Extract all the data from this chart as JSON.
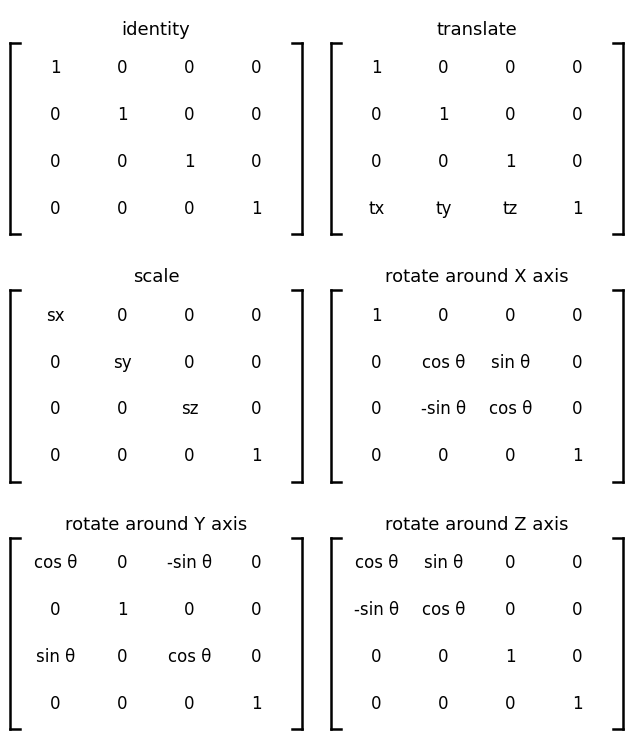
{
  "title_fontsize": 13,
  "cell_fontsize": 12,
  "background_color": "#ffffff",
  "text_color": "#000000",
  "bracket_color": "#000000",
  "fig_width": 6.33,
  "fig_height": 7.35,
  "matrices": [
    {
      "title": "identity",
      "col": 0,
      "row": 0,
      "cells": [
        [
          "1",
          "0",
          "0",
          "0"
        ],
        [
          "0",
          "1",
          "0",
          "0"
        ],
        [
          "0",
          "0",
          "1",
          "0"
        ],
        [
          "0",
          "0",
          "0",
          "1"
        ]
      ]
    },
    {
      "title": "translate",
      "col": 1,
      "row": 0,
      "cells": [
        [
          "1",
          "0",
          "0",
          "0"
        ],
        [
          "0",
          "1",
          "0",
          "0"
        ],
        [
          "0",
          "0",
          "1",
          "0"
        ],
        [
          "tx",
          "ty",
          "tz",
          "1"
        ]
      ]
    },
    {
      "title": "scale",
      "col": 0,
      "row": 1,
      "cells": [
        [
          "sx",
          "0",
          "0",
          "0"
        ],
        [
          "0",
          "sy",
          "0",
          "0"
        ],
        [
          "0",
          "0",
          "sz",
          "0"
        ],
        [
          "0",
          "0",
          "0",
          "1"
        ]
      ]
    },
    {
      "title": "rotate around X axis",
      "col": 1,
      "row": 1,
      "cells": [
        [
          "1",
          "0",
          "0",
          "0"
        ],
        [
          "0",
          "cos θ",
          "sin θ",
          "0"
        ],
        [
          "0",
          "-sin θ",
          "cos θ",
          "0"
        ],
        [
          "0",
          "0",
          "0",
          "1"
        ]
      ]
    },
    {
      "title": "rotate around Y axis",
      "col": 0,
      "row": 2,
      "cells": [
        [
          "cos θ",
          "0",
          "-sin θ",
          "0"
        ],
        [
          "0",
          "1",
          "0",
          "0"
        ],
        [
          "sin θ",
          "0",
          "cos θ",
          "0"
        ],
        [
          "0",
          "0",
          "0",
          "1"
        ]
      ]
    },
    {
      "title": "rotate around Z axis",
      "col": 1,
      "row": 2,
      "cells": [
        [
          "cos θ",
          "sin θ",
          "0",
          "0"
        ],
        [
          "-sin θ",
          "cos θ",
          "0",
          "0"
        ],
        [
          "0",
          "0",
          "1",
          "0"
        ],
        [
          "0",
          "0",
          "0",
          "1"
        ]
      ]
    }
  ]
}
